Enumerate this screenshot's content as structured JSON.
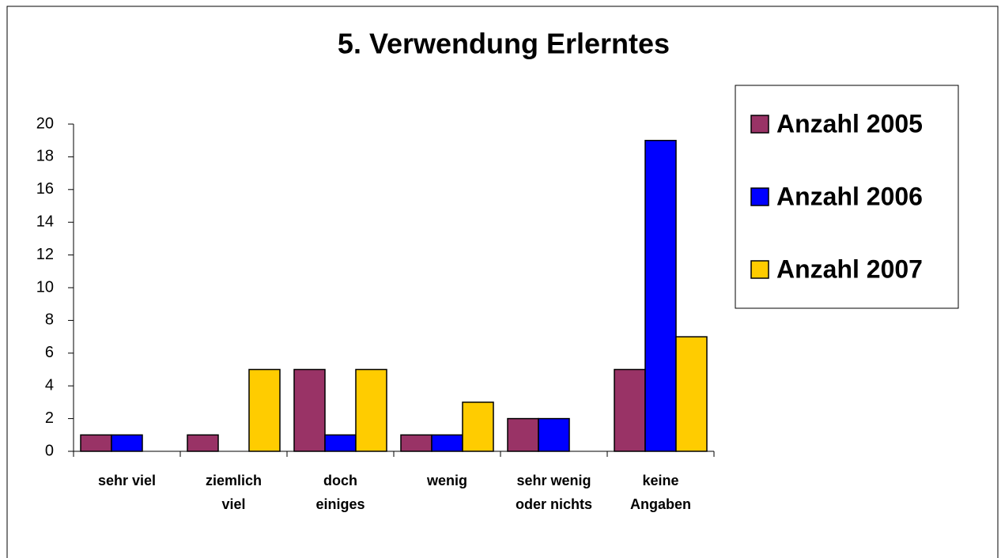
{
  "chart_data": {
    "type": "bar",
    "title": "5. Verwendung Erlerntes",
    "categories": [
      "sehr viel",
      "ziemlich viel",
      "doch einiges",
      "wenig",
      "sehr wenig oder nichts",
      "keine Angaben"
    ],
    "series": [
      {
        "name": "Anzahl 2005",
        "color": "#993366",
        "values": [
          1,
          1,
          5,
          1,
          2,
          5
        ]
      },
      {
        "name": "Anzahl 2006",
        "color": "#0000ff",
        "values": [
          1,
          0,
          1,
          1,
          2,
          19
        ]
      },
      {
        "name": "Anzahl 2007",
        "color": "#ffcc00",
        "values": [
          0,
          5,
          5,
          3,
          0,
          7
        ]
      }
    ],
    "ylim": [
      0,
      20
    ],
    "yticks": [
      0,
      2,
      4,
      6,
      8,
      10,
      12,
      14,
      16,
      18,
      20
    ],
    "grid": false,
    "legend": "right"
  }
}
